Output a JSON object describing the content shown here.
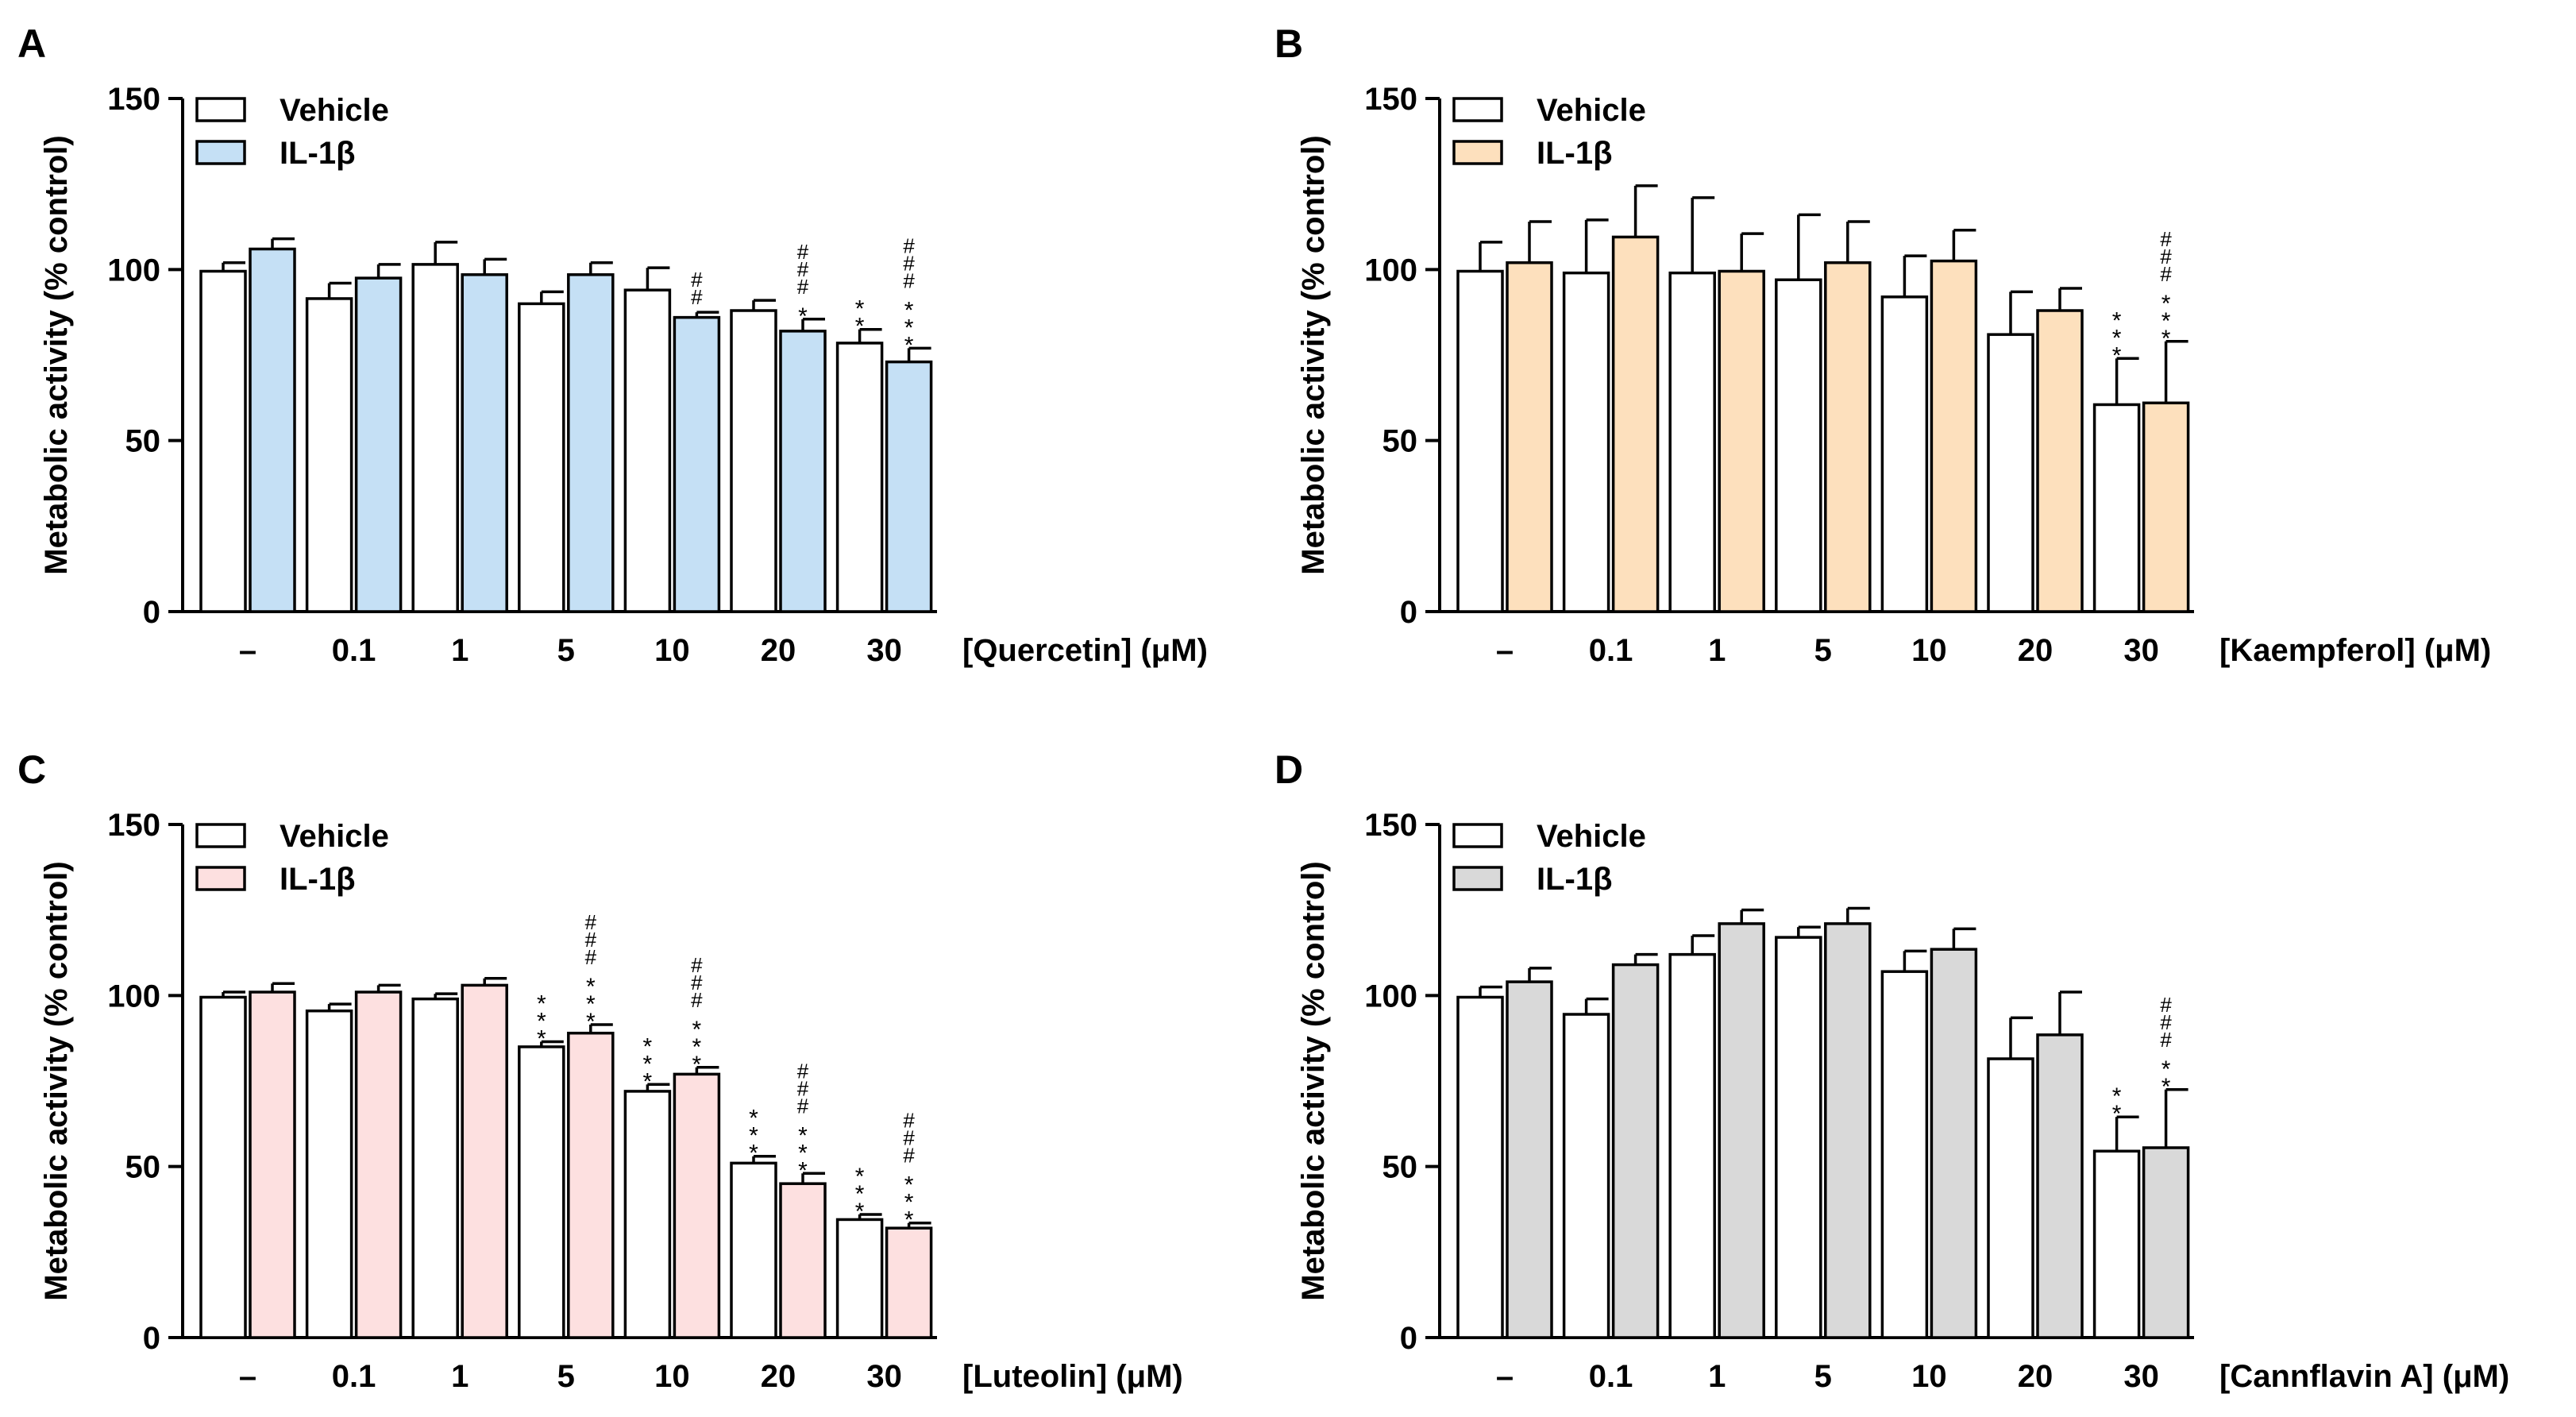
{
  "figure": {
    "caption": ""
  },
  "colors": {
    "vehicle_fill": "#ffffff",
    "stroke": "#000000"
  },
  "chart_data": [
    {
      "panel": "A",
      "type": "bar",
      "title": "",
      "ylabel": "Metabolic activity (% control)",
      "xlabel": "[Quercetin] (μM)",
      "ylim": [
        0,
        150
      ],
      "yticks": [
        0,
        50,
        100,
        150
      ],
      "categories": [
        "–",
        "0.1",
        "1",
        "5",
        "10",
        "20",
        "30"
      ],
      "legend": [
        "Vehicle",
        "IL-1β"
      ],
      "legend_position": "top-left",
      "series": [
        {
          "name": "Vehicle",
          "color": "#ffffff",
          "values": [
            99.5,
            91.5,
            101.5,
            90,
            94,
            88,
            78.5
          ],
          "errors": [
            2.5,
            4.5,
            6.5,
            3.5,
            6.5,
            3,
            4
          ],
          "sig": [
            "",
            "",
            "",
            "",
            "",
            "",
            "**"
          ]
        },
        {
          "name": "IL-1β",
          "color": "#c5e0f5",
          "values": [
            106,
            97.5,
            98.5,
            98.5,
            86,
            82,
            73
          ],
          "errors": [
            3,
            4,
            4.5,
            3.5,
            1.5,
            3.5,
            4
          ],
          "sig": [
            "",
            "",
            "",
            "",
            "##",
            "###*",
            "###***"
          ]
        }
      ]
    },
    {
      "panel": "B",
      "type": "bar",
      "title": "",
      "ylabel": "Metabolic activity (% control)",
      "xlabel": "[Kaempferol] (μM)",
      "ylim": [
        0,
        150
      ],
      "yticks": [
        0,
        50,
        100,
        150
      ],
      "categories": [
        "–",
        "0.1",
        "1",
        "5",
        "10",
        "20",
        "30"
      ],
      "legend": [
        "Vehicle",
        "IL-1β"
      ],
      "legend_position": "top-left",
      "series": [
        {
          "name": "Vehicle",
          "color": "#ffffff",
          "values": [
            99.5,
            99,
            99,
            97,
            92,
            81,
            60.5
          ],
          "errors": [
            8.5,
            15.5,
            22,
            19,
            12,
            12.5,
            13.5
          ],
          "sig": [
            "",
            "",
            "",
            "",
            "",
            "",
            "***"
          ]
        },
        {
          "name": "IL-1β",
          "color": "#fde0bd",
          "values": [
            102,
            109.5,
            99.5,
            102,
            102.5,
            88,
            61
          ],
          "errors": [
            12,
            15,
            11,
            12,
            9,
            6.5,
            18
          ],
          "sig": [
            "",
            "",
            "",
            "",
            "",
            "",
            "###***"
          ]
        }
      ]
    },
    {
      "panel": "C",
      "type": "bar",
      "title": "",
      "ylabel": "Metabolic activity (% control)",
      "xlabel": "[Luteolin] (μM)",
      "ylim": [
        0,
        150
      ],
      "yticks": [
        0,
        50,
        100,
        150
      ],
      "categories": [
        "–",
        "0.1",
        "1",
        "5",
        "10",
        "20",
        "30"
      ],
      "legend": [
        "Vehicle",
        "IL-1β"
      ],
      "legend_position": "top-left",
      "series": [
        {
          "name": "Vehicle",
          "color": "#ffffff",
          "values": [
            99.5,
            95.5,
            99,
            85,
            72,
            51,
            34.5
          ],
          "errors": [
            1.5,
            2,
            1.5,
            1.5,
            2,
            2,
            1.5
          ],
          "sig": [
            "",
            "",
            "",
            "***",
            "***",
            "***",
            "***"
          ]
        },
        {
          "name": "IL-1β",
          "color": "#fde0e0",
          "values": [
            101,
            101,
            103,
            89,
            77,
            45,
            32
          ],
          "errors": [
            2.5,
            2,
            2,
            2.5,
            2,
            3,
            1.5
          ],
          "sig": [
            "",
            "",
            "",
            "###***",
            "###***",
            "###***",
            "###***"
          ]
        }
      ]
    },
    {
      "panel": "D",
      "type": "bar",
      "title": "",
      "ylabel": "Metabolic activity (% control)",
      "xlabel": "[Cannflavin A] (μM)",
      "ylim": [
        0,
        150
      ],
      "yticks": [
        0,
        50,
        100,
        150
      ],
      "categories": [
        "–",
        "0.1",
        "1",
        "5",
        "10",
        "20",
        "30"
      ],
      "legend": [
        "Vehicle",
        "IL-1β"
      ],
      "legend_position": "top-left",
      "series": [
        {
          "name": "Vehicle",
          "color": "#ffffff",
          "values": [
            99.5,
            94.5,
            112,
            117,
            107,
            81.5,
            54.5
          ],
          "errors": [
            3,
            4.5,
            5.5,
            3,
            6,
            12,
            10
          ],
          "sig": [
            "",
            "",
            "",
            "",
            "",
            "",
            "**"
          ]
        },
        {
          "name": "IL-1β",
          "color": "#d9d9d9",
          "values": [
            104,
            109,
            121,
            121,
            113.5,
            88.5,
            55.5
          ],
          "errors": [
            4,
            3,
            4,
            4.5,
            6,
            12.5,
            17
          ],
          "sig": [
            "",
            "",
            "",
            "",
            "",
            "",
            "###**"
          ]
        }
      ]
    }
  ]
}
